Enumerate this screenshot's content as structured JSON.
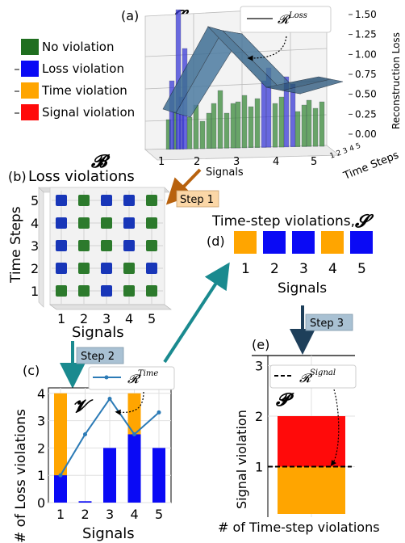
{
  "panel_a": {
    "label": "(a)",
    "symbol": "𝓛",
    "legend_series": "𝓡",
    "legend_sup": "Loss",
    "xlabel": "Signals",
    "xticks": [
      "1",
      "2",
      "3",
      "4",
      "5"
    ],
    "zlabel": "Reconstruction Loss",
    "zticks": [
      "0.00",
      "0.25",
      "0.50",
      "0.75",
      "1.00",
      "1.25",
      "1.50"
    ],
    "ylabel": "Time Steps",
    "yticks_overlap": "1 2 3 4 5",
    "category_legend": [
      {
        "label": "No violation",
        "color": "#1f6e1f"
      },
      {
        "label": "Loss violation",
        "color": "#0a0af5"
      },
      {
        "label": "Time violation",
        "color": "#ffa500"
      },
      {
        "label": "Signal violation",
        "color": "#ff0a0a"
      }
    ]
  },
  "panel_b": {
    "symbol": "𝓑",
    "label": "(b)",
    "title": "Loss violations",
    "ylabel": "Time Steps",
    "xlabel": "Signals",
    "xticks": [
      "1",
      "2",
      "3",
      "4",
      "5"
    ],
    "yticks": [
      "1",
      "2",
      "3",
      "4",
      "5"
    ],
    "grid": [
      [
        "loss",
        "none",
        "loss",
        "loss",
        "none"
      ],
      [
        "loss",
        "none",
        "none",
        "loss",
        "none"
      ],
      [
        "loss",
        "none",
        "none",
        "loss",
        "none"
      ],
      [
        "loss",
        "none",
        "loss",
        "none",
        "loss"
      ],
      [
        "none",
        "none",
        "loss",
        "none",
        "none"
      ]
    ]
  },
  "steps": {
    "step1": "Step 1",
    "step2": "Step 2",
    "step3": "Step 3"
  },
  "panel_c": {
    "label": "(c)",
    "symbol": "𝓥",
    "ylabel": "# of Loss violations",
    "xlabel": "Signals",
    "legend_series": "𝓡",
    "legend_sup": "Time"
  },
  "panel_d": {
    "label": "(d)",
    "title": "Time-step violations,",
    "symbol": "𝓢",
    "xlabel": "Signals",
    "labels": [
      "1",
      "2",
      "3",
      "4",
      "5"
    ],
    "colors": [
      "#ffa500",
      "#0a0af5",
      "#0a0af5",
      "#ffa500",
      "#0a0af5"
    ]
  },
  "panel_e": {
    "label": "(e)",
    "symbol": "𝓟",
    "ylabel": "Signal violation",
    "xlabel": "# of Time-step violations",
    "legend_series": "𝓡",
    "legend_sup": "Signal",
    "yticks": [
      "1",
      "2",
      "3"
    ]
  },
  "chart_data": [
    {
      "type": "bar",
      "categories": [
        "1",
        "2",
        "3",
        "4",
        "5"
      ],
      "series": [
        {
          "name": "Loss violation",
          "values": [
            1,
            0,
            2,
            2.5,
            2
          ]
        },
        {
          "name": "Time violation",
          "values": [
            4,
            0,
            0,
            4,
            0
          ]
        },
        {
          "name": "𝓡Time",
          "values": [
            1,
            2.5,
            3.8,
            2.5,
            3.3
          ]
        }
      ],
      "xlabel": "Signals",
      "ylabel": "# of Loss violations",
      "ylim": [
        0,
        4.2
      ],
      "yticks": [
        "0",
        "1",
        "2",
        "3",
        "4"
      ],
      "grid": true
    },
    {
      "type": "bar",
      "categories": [
        ""
      ],
      "series": [
        {
          "name": "Time violation",
          "values": [
            1
          ]
        },
        {
          "name": "Signal violation",
          "values": [
            2
          ]
        },
        {
          "name": "𝓡Signal",
          "values": [
            1
          ]
        }
      ],
      "xlabel": "# of Time-step violations",
      "ylabel": "Signal violation",
      "ylim": [
        0,
        3.2
      ],
      "yticks": [
        "1",
        "2",
        "3"
      ],
      "grid": true
    }
  ]
}
